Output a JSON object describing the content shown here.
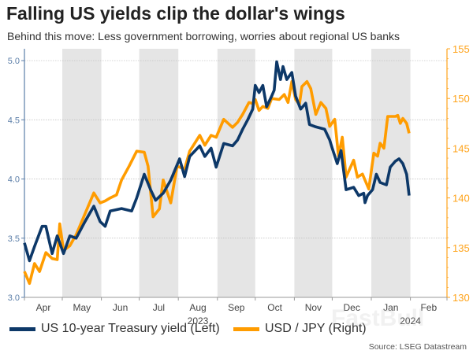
{
  "title": "Falling US yields clip the dollar's wings",
  "subtitle": "Behind this move: Less government borrowing, worries about regional US banks",
  "source": "Source: LSEG Datastream",
  "watermark": "FastBull",
  "colors": {
    "yield": "#0d3868",
    "jpy": "#ff9c00",
    "shade": "#e5e5e5",
    "left_axis": "#5b7ea8",
    "right_axis": "#ffa31a"
  },
  "chart_data": {
    "type": "line",
    "title": "Falling US yields clip the dollar's wings",
    "x_range": [
      "2023-04-01",
      "2024-02-29"
    ],
    "x_tick_labels": [
      "Apr",
      "May",
      "Jun",
      "Jul",
      "Aug",
      "Sep",
      "Oct",
      "Nov",
      "Dec",
      "Jan",
      "Feb"
    ],
    "year_labels": [
      "2023",
      "2024"
    ],
    "shaded_months": [
      "2023-05",
      "2023-07",
      "2023-09",
      "2023-11",
      "2024-01"
    ],
    "y_left": {
      "range": [
        3.0,
        5.1
      ],
      "ticks": [
        "3.0",
        "3.5",
        "4.0",
        "4.5",
        "5.0"
      ]
    },
    "y_right": {
      "range": [
        130,
        155
      ],
      "ticks": [
        "130",
        "135",
        "140",
        "145",
        "150",
        "155"
      ]
    },
    "grid": "horizontal dotted",
    "legend_position": "bottom",
    "series": [
      {
        "name": "US 10-year Treasury yield (Left)",
        "axis": "left",
        "x": [
          "2023-04-01",
          "2023-04-05",
          "2023-04-09",
          "2023-04-15",
          "2023-04-18",
          "2023-04-21",
          "2023-04-23",
          "2023-04-27",
          "2023-05-02",
          "2023-05-07",
          "2023-05-12",
          "2023-05-19",
          "2023-05-26",
          "2023-05-31",
          "2023-06-04",
          "2023-06-08",
          "2023-06-17",
          "2023-06-25",
          "2023-06-29",
          "2023-07-05",
          "2023-07-10",
          "2023-07-14",
          "2023-07-20",
          "2023-07-26",
          "2023-08-02",
          "2023-08-06",
          "2023-08-10",
          "2023-08-18",
          "2023-08-22",
          "2023-08-27",
          "2023-08-31",
          "2023-09-06",
          "2023-09-13",
          "2023-09-17",
          "2023-09-21",
          "2023-09-25",
          "2023-09-29",
          "2023-10-01",
          "2023-10-04",
          "2023-10-07",
          "2023-10-10",
          "2023-10-14",
          "2023-10-16",
          "2023-10-18",
          "2023-10-21",
          "2023-10-23",
          "2023-10-26",
          "2023-10-30",
          "2023-11-02",
          "2023-11-06",
          "2023-11-10",
          "2023-11-13",
          "2023-11-18",
          "2023-11-25",
          "2023-11-29",
          "2023-12-01",
          "2023-12-05",
          "2023-12-08",
          "2023-12-12",
          "2023-12-18",
          "2023-12-22",
          "2023-12-26",
          "2023-12-27",
          "2023-12-29",
          "2024-01-02",
          "2024-01-05",
          "2024-01-08",
          "2024-01-13",
          "2024-01-16",
          "2024-01-20",
          "2024-01-23",
          "2024-01-26",
          "2024-01-29",
          "2024-01-31"
        ],
        "y": [
          3.46,
          3.31,
          3.43,
          3.6,
          3.6,
          3.46,
          3.37,
          3.52,
          3.37,
          3.52,
          3.5,
          3.64,
          3.77,
          3.64,
          3.6,
          3.73,
          3.75,
          3.73,
          3.84,
          4.04,
          3.91,
          3.82,
          3.88,
          3.99,
          4.17,
          4.02,
          4.19,
          4.28,
          4.19,
          4.26,
          4.1,
          4.3,
          4.28,
          4.33,
          4.42,
          4.5,
          4.59,
          4.79,
          4.73,
          4.79,
          4.61,
          4.7,
          4.75,
          4.99,
          4.84,
          4.95,
          4.84,
          4.9,
          4.7,
          4.59,
          4.64,
          4.46,
          4.44,
          4.42,
          4.33,
          4.26,
          4.13,
          4.24,
          3.91,
          3.93,
          3.86,
          3.88,
          3.8,
          3.86,
          3.91,
          4.04,
          3.97,
          3.95,
          4.1,
          4.15,
          4.17,
          4.13,
          4.04,
          3.86
        ]
      },
      {
        "name": "USD / JPY (Right)",
        "axis": "right",
        "x": [
          "2023-04-01",
          "2023-04-05",
          "2023-04-09",
          "2023-04-13",
          "2023-04-18",
          "2023-04-23",
          "2023-04-27",
          "2023-04-29",
          "2023-05-02",
          "2023-05-07",
          "2023-05-12",
          "2023-05-19",
          "2023-05-26",
          "2023-05-31",
          "2023-06-04",
          "2023-06-08",
          "2023-06-13",
          "2023-06-17",
          "2023-06-23",
          "2023-06-29",
          "2023-07-05",
          "2023-07-08",
          "2023-07-12",
          "2023-07-17",
          "2023-07-20",
          "2023-07-26",
          "2023-07-31",
          "2023-08-06",
          "2023-08-10",
          "2023-08-18",
          "2023-08-22",
          "2023-08-27",
          "2023-08-31",
          "2023-09-06",
          "2023-09-13",
          "2023-09-17",
          "2023-09-21",
          "2023-09-26",
          "2023-09-29",
          "2023-10-01",
          "2023-10-04",
          "2023-10-07",
          "2023-10-11",
          "2023-10-14",
          "2023-10-20",
          "2023-10-24",
          "2023-10-27",
          "2023-10-30",
          "2023-11-02",
          "2023-11-05",
          "2023-11-07",
          "2023-11-11",
          "2023-11-14",
          "2023-11-18",
          "2023-11-22",
          "2023-11-26",
          "2023-11-29",
          "2023-12-03",
          "2023-12-06",
          "2023-12-09",
          "2023-12-12",
          "2023-12-18",
          "2023-12-21",
          "2023-12-25",
          "2023-12-30",
          "2024-01-03",
          "2024-01-06",
          "2024-01-08",
          "2024-01-11",
          "2024-01-14",
          "2024-01-20",
          "2024-01-22",
          "2024-01-24",
          "2024-01-26",
          "2024-01-29",
          "2024-01-31"
        ],
        "y": [
          132.6,
          131.4,
          133.4,
          132.6,
          134.5,
          133.9,
          133.8,
          137.4,
          134.7,
          135.2,
          136.3,
          138.4,
          140.5,
          139.5,
          139.7,
          140.0,
          140.3,
          141.8,
          143.2,
          144.7,
          144.6,
          143.2,
          138.1,
          138.9,
          141.8,
          139.5,
          143.2,
          142.9,
          144.7,
          146.3,
          145.3,
          146.3,
          146.1,
          147.9,
          147.1,
          147.6,
          148.4,
          149.6,
          149.5,
          149.9,
          148.8,
          149.2,
          149.0,
          150.0,
          149.9,
          150.4,
          149.6,
          151.7,
          149.9,
          149.4,
          151.2,
          151.7,
          151.0,
          148.4,
          149.6,
          149.0,
          147.2,
          147.9,
          144.2,
          146.1,
          142.1,
          143.8,
          142.1,
          142.4,
          140.9,
          144.5,
          144.2,
          145.5,
          145.0,
          148.2,
          148.2,
          148.3,
          147.5,
          148.0,
          147.5,
          146.5
        ]
      }
    ]
  }
}
